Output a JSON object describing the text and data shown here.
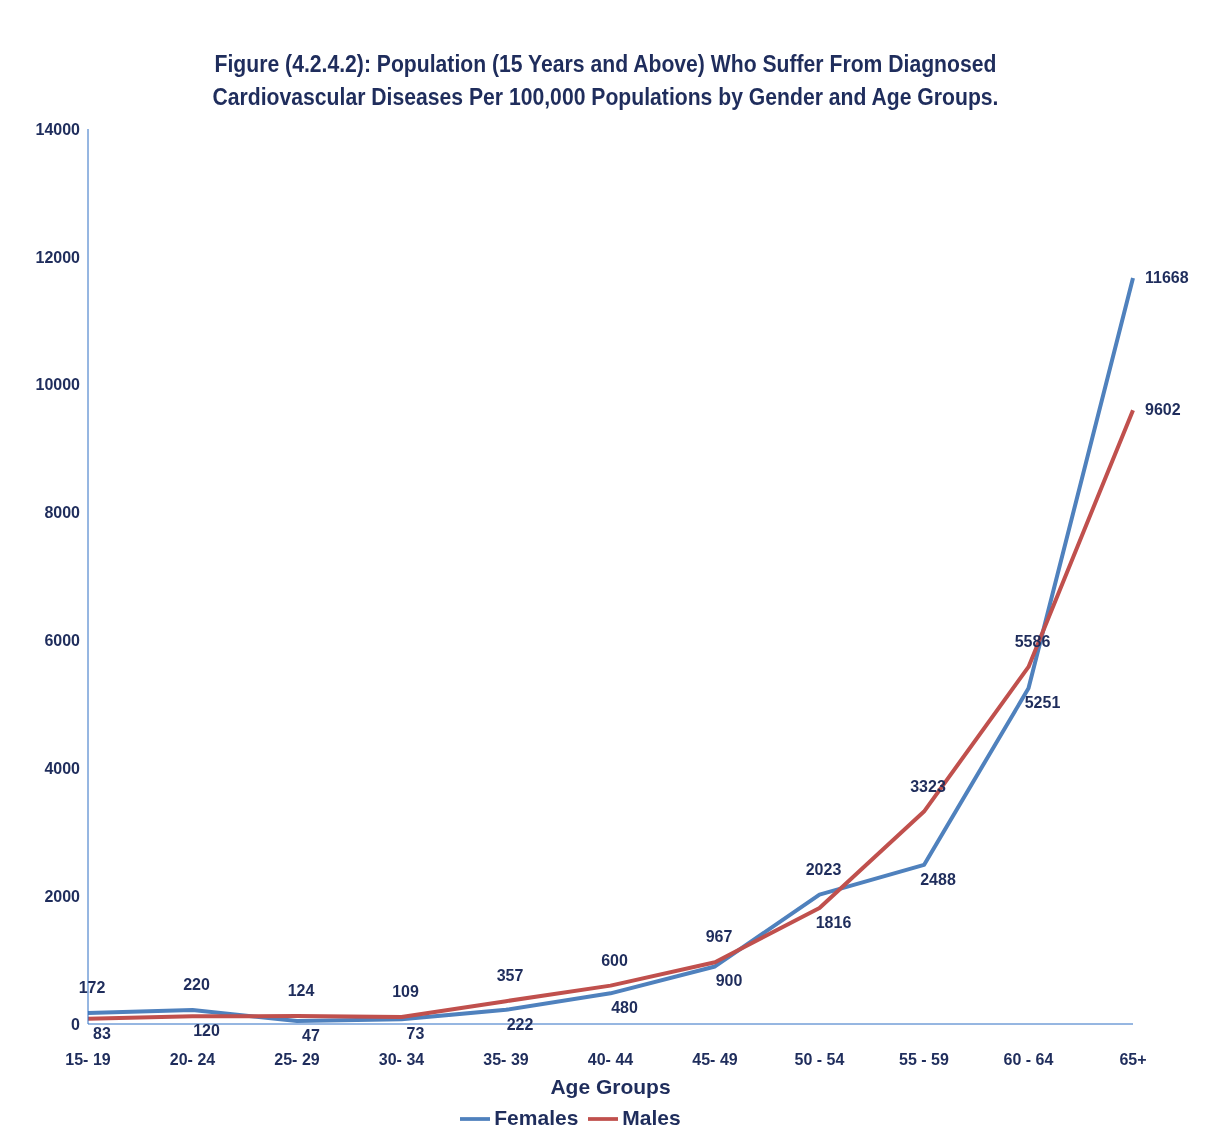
{
  "chart_data": {
    "type": "line",
    "title": "Figure (4.2.4.2): Population (15 Years and Above) Who Suffer From Diagnosed Cardiovascular Diseases Per 100,000 Populations by Gender and Age Groups.",
    "xlabel": "Age Groups",
    "categories": [
      "15- 19",
      "20- 24",
      "25- 29",
      "30- 34",
      "35- 39",
      "40- 44",
      "45- 49",
      "50 - 54",
      "55 - 59",
      "60 - 64",
      "65+"
    ],
    "series": [
      {
        "name": "Females",
        "color": "#4f81bd",
        "values": [
          172,
          220,
          47,
          73,
          222,
          480,
          900,
          2023,
          2488,
          5251,
          11668
        ]
      },
      {
        "name": "Males",
        "color": "#c0504d",
        "values": [
          83,
          120,
          124,
          109,
          357,
          600,
          967,
          1816,
          3323,
          5586,
          9602
        ]
      }
    ],
    "ylim": [
      0,
      14000
    ],
    "yticks": [
      0,
      2000,
      4000,
      6000,
      8000,
      10000,
      12000,
      14000
    ],
    "grid": false,
    "legend": "bottom",
    "marker": "none",
    "line_style": "solid",
    "data_labels": true
  }
}
